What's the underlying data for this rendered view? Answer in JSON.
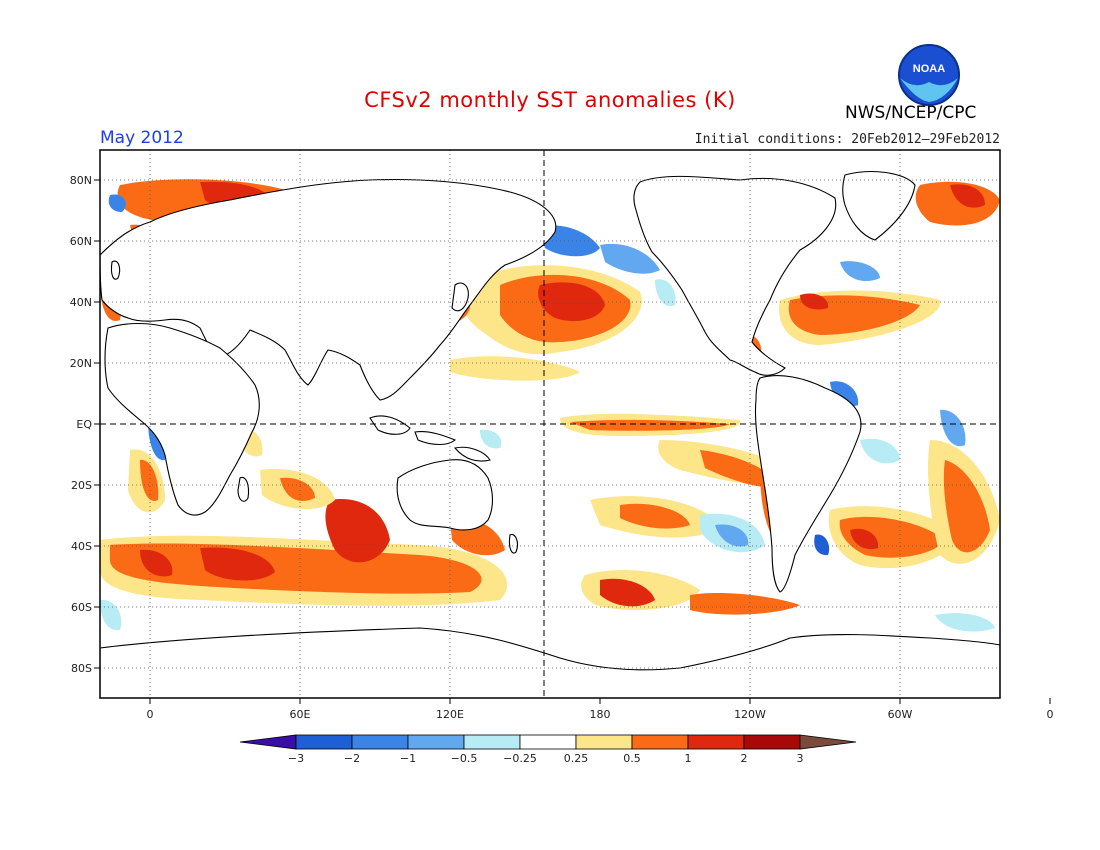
{
  "header": {
    "title": "CFSv2 monthly SST anomalies (K)",
    "org": "NWS/NCEP/CPC",
    "logo_text": "NOAA",
    "month": "May 2012",
    "initial_conditions": "Initial conditions: 20Feb2012–29Feb2012"
  },
  "map": {
    "lat_labels": [
      "80N",
      "60N",
      "40N",
      "20N",
      "EQ",
      "20S",
      "40S",
      "60S",
      "80S"
    ],
    "lon_labels": [
      "0",
      "60E",
      "120E",
      "180",
      "120W",
      "60W",
      "0"
    ]
  },
  "colorbar": {
    "labels": [
      "−3",
      "−2",
      "−1",
      "−0.5",
      "−0.25",
      "0.25",
      "0.5",
      "1",
      "2",
      "3"
    ],
    "colors": [
      "#3a0fa8",
      "#1f5fd6",
      "#3a84e8",
      "#62a8f0",
      "#b7ecf5",
      "#ffffff",
      "#fde58a",
      "#fb6b16",
      "#e0280e",
      "#a90808",
      "#7a4a3a"
    ]
  }
}
